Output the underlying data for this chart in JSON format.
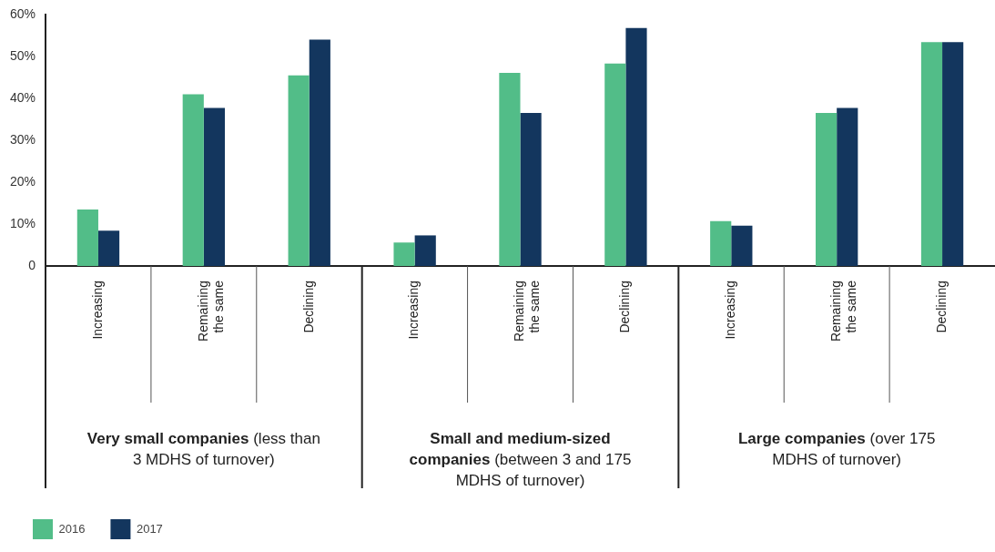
{
  "chart_data": {
    "type": "bar",
    "categories": [
      "Increasing",
      "Remaining the same",
      "Declining",
      "Increasing",
      "Remaining the same",
      "Declining",
      "Increasing",
      "Remaining the same",
      "Declining"
    ],
    "series": [
      {
        "name": "2016",
        "color": "#52bd88",
        "values": [
          13.5,
          41,
          45.5,
          5.6,
          46.1,
          48.3,
          10.7,
          36.5,
          53.4
        ]
      },
      {
        "name": "2017",
        "color": "#13365e",
        "values": [
          8.4,
          37.7,
          54,
          7.3,
          36.5,
          56.8,
          9.6,
          37.7,
          53.4
        ]
      }
    ],
    "ylim": [
      0,
      60
    ],
    "yticks": [
      {
        "value": 0,
        "label": "0"
      },
      {
        "value": 10,
        "label": "10%"
      },
      {
        "value": 20,
        "label": "20%"
      },
      {
        "value": 30,
        "label": "30%"
      },
      {
        "value": 40,
        "label": "40%"
      },
      {
        "value": 50,
        "label": "50%"
      },
      {
        "value": 60,
        "label": "60%"
      }
    ],
    "grid": false,
    "legend": "bottom left",
    "annotations": [
      "Very small companies (less than 3 MDHS of turnover)",
      "Small and medium-sized companies (between 3 and 175 MDHS of turnover)",
      "Large companies (over 175 MDHS of turnover)"
    ]
  }
}
